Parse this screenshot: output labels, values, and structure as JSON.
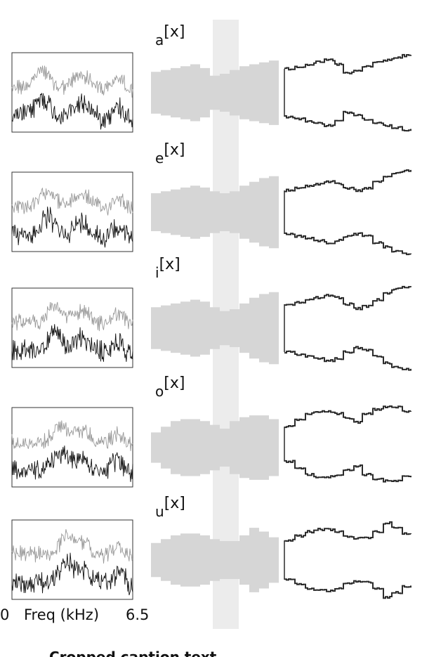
{
  "rows": [
    {
      "label_main": "[x]",
      "label_sub": "a"
    },
    {
      "label_main": "[x]",
      "label_sub": "e"
    },
    {
      "label_main": "[x]",
      "label_sub": "i"
    },
    {
      "label_main": "[x]",
      "label_sub": "o"
    },
    {
      "label_main": "[x]",
      "label_sub": "u"
    }
  ],
  "axis": {
    "min_label": "0",
    "title": "Freq (kHz)",
    "max_label": "6.5"
  },
  "caption": "Cropped caption text (partially visible)",
  "colors": {
    "upper_spectrum": "#9a9a9a",
    "lower_spectrum": "#111111",
    "tube_shape": "#d6d6d6",
    "center_band": "#ececec",
    "outline": "#2b2b2b"
  }
}
